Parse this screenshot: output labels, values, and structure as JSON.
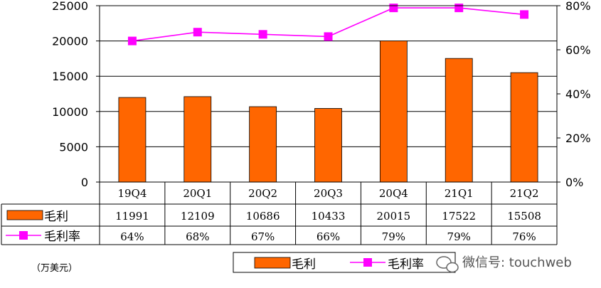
{
  "chart_data": {
    "type": "bar+line",
    "categories": [
      "19Q4",
      "20Q1",
      "20Q2",
      "20Q3",
      "20Q4",
      "21Q1",
      "21Q2"
    ],
    "series": [
      {
        "name": "毛利",
        "kind": "bar",
        "axis": "left",
        "color": "#ff6600",
        "values": [
          11991,
          12109,
          10686,
          10433,
          20015,
          17522,
          15508
        ],
        "labels": [
          "11991",
          "12109",
          "10686",
          "10433",
          "20015",
          "17522",
          "15508"
        ]
      },
      {
        "name": "毛利率",
        "kind": "line",
        "axis": "right",
        "color": "#ff00ff",
        "values": [
          64,
          68,
          67,
          66,
          79,
          79,
          76
        ],
        "labels": [
          "64%",
          "68%",
          "67%",
          "66%",
          "79%",
          "79%",
          "76%"
        ]
      }
    ],
    "y_left": {
      "ylim": [
        0,
        25000
      ],
      "ticks": [
        "0",
        "5000",
        "10000",
        "15000",
        "20000",
        "25000"
      ]
    },
    "y_right": {
      "ylim": [
        0,
        80
      ],
      "ticks": [
        "0%",
        "20%",
        "40%",
        "60%",
        "80%"
      ]
    },
    "grid": true,
    "data_table": true,
    "unit_note": "（万美元）",
    "legend": {
      "position": "bottom",
      "items": [
        "毛利",
        "毛利率"
      ]
    }
  },
  "watermark": {
    "icon": "wechat-icon",
    "text": "微信号: touchweb"
  }
}
